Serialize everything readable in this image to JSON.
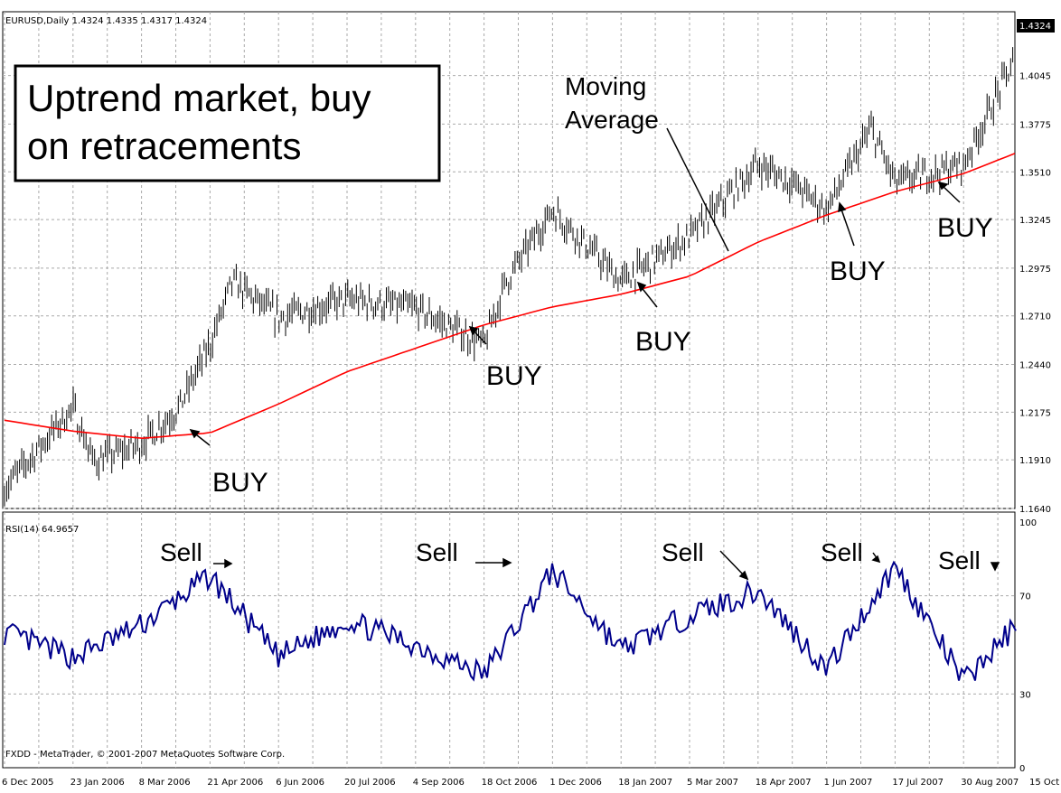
{
  "header": {
    "price_title": "EURUSD,Daily  1.4324 1.4335 1.4317 1.4324",
    "rsi_title": "RSI(14) 64.9657",
    "footer": "FXDD - MetaTrader, © 2001-2007 MetaQuotes Software Corp.",
    "current_price": "1.4324"
  },
  "annotations": {
    "headline_line1": "Uptrend market, buy",
    "headline_line2": "on retracements",
    "ma_label_line1": "Moving",
    "ma_label_line2": "Average",
    "buy": [
      "BUY",
      "BUY",
      "BUY",
      "BUY",
      "BUY"
    ],
    "sell": [
      "Sell",
      "Sell",
      "Sell",
      "Sell",
      "Sell"
    ]
  },
  "colors": {
    "background": "#ffffff",
    "grid": "#a9a9a9",
    "bars": "#000000",
    "moving_average": "#ff0000",
    "rsi_line": "#00008b"
  },
  "chart_data": [
    {
      "type": "line",
      "title": "EURUSD,Daily",
      "ylim": [
        1.164,
        1.4324
      ],
      "y_ticks": [
        "1.4045",
        "1.3775",
        "1.3510",
        "1.3245",
        "1.2975",
        "1.2710",
        "1.2440",
        "1.2175",
        "1.1910",
        "1.1640"
      ],
      "x_ticks": [
        "6 Dec 2005",
        "23 Jan 2006",
        "8 Mar 2006",
        "21 Apr 2006",
        "6 Jun 2006",
        "20 Jul 2006",
        "4 Sep 2006",
        "18 Oct 2006",
        "1 Dec 2006",
        "18 Jan 2007",
        "5 Mar 2007",
        "18 Apr 2007",
        "1 Jun 2007",
        "17 Jul 2007",
        "30 Aug 2007",
        "15 Oct 2007"
      ],
      "series": [
        {
          "kind": "price",
          "x": [
            "6 Dec 2005",
            "23 Jan 2006",
            "5 Feb 2006",
            "8 Mar 2006",
            "1 Apr 2006",
            "21 Apr 2006",
            "6 May 2006",
            "6 Jun 2006",
            "20 Jul 2006",
            "4 Sep 2006",
            "18 Oct 2006",
            "1 Nov 2006",
            "1 Dec 2006",
            "18 Jan 2007",
            "5 Mar 2007",
            "18 Apr 2007",
            "10 May 2007",
            "1 Jun 2007",
            "1 Jul 2007",
            "17 Jul 2007",
            "30 Aug 2007",
            "1 Oct 2007",
            "15 Oct 2007"
          ],
          "values": [
            1.175,
            1.22,
            1.19,
            1.2,
            1.22,
            1.255,
            1.29,
            1.27,
            1.28,
            1.275,
            1.255,
            1.29,
            1.33,
            1.29,
            1.315,
            1.355,
            1.345,
            1.33,
            1.375,
            1.345,
            1.355,
            1.41,
            1.4324
          ]
        },
        {
          "kind": "moving_average",
          "x": [
            "6 Dec 2005",
            "23 Jan 2006",
            "8 Mar 2006",
            "21 Apr 2006",
            "6 Jun 2006",
            "20 Jul 2006",
            "4 Sep 2006",
            "18 Oct 2006",
            "1 Dec 2006",
            "18 Jan 2007",
            "5 Mar 2007",
            "18 Apr 2007",
            "1 Jun 2007",
            "17 Jul 2007",
            "30 Aug 2007",
            "15 Oct 2007"
          ],
          "values": [
            1.213,
            1.207,
            1.203,
            1.206,
            1.222,
            1.24,
            1.253,
            1.266,
            1.276,
            1.283,
            1.293,
            1.312,
            1.327,
            1.34,
            1.35,
            1.365
          ]
        }
      ]
    },
    {
      "type": "line",
      "title": "RSI(14) 64.9657",
      "ylim": [
        0,
        100
      ],
      "y_ticks": [
        "100",
        "70",
        "30",
        "0"
      ],
      "series": [
        {
          "kind": "rsi",
          "x": [
            "6 Dec 2005",
            "23 Jan 2006",
            "8 Mar 2006",
            "21 Apr 2006",
            "6 Jun 2006",
            "20 Jul 2006",
            "4 Sep 2006",
            "18 Oct 2006",
            "1 Dec 2006",
            "18 Jan 2007",
            "5 Mar 2007",
            "18 Apr 2007",
            "1 Jun 2007",
            "17 Jul 2007",
            "30 Aug 2007",
            "15 Oct 2007"
          ],
          "values": [
            55,
            45,
            58,
            78,
            45,
            60,
            50,
            38,
            80,
            48,
            62,
            72,
            40,
            82,
            35,
            65
          ]
        }
      ]
    }
  ]
}
